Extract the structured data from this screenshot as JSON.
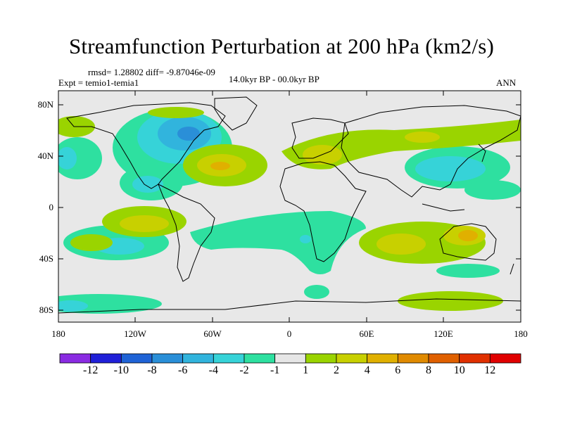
{
  "title": "Streamfunction Perturbation at 200 hPa (km2/s)",
  "stats": "rmsd= 1.28802 diff= -9.87046e-09",
  "experiment": "Expt = temio1-temia1",
  "period": "14.0kyr BP - 00.0kyr BP",
  "season": "ANN",
  "colors": {
    "land_outline": "#000000",
    "background": "#e8e8e8"
  },
  "map_data": {
    "projection": "cylindrical-equidistant",
    "lon_range": [
      -180,
      180
    ],
    "lat_range": [
      -90,
      90
    ],
    "y_ticks": [
      "80N",
      "40N",
      "0",
      "40S",
      "80S"
    ],
    "x_ticks": [
      "180",
      "120W",
      "60W",
      "0",
      "60E",
      "120E",
      "180"
    ]
  },
  "colorbar": {
    "labels": [
      "-12",
      "-10",
      "-8",
      "-6",
      "-4",
      "-2",
      "-1",
      "1",
      "2",
      "4",
      "6",
      "8",
      "10",
      "12"
    ],
    "colors": [
      "#8a2be2",
      "#2020d8",
      "#1f63d6",
      "#2a8fd8",
      "#31b4dd",
      "#36d3d8",
      "#2ee0a0",
      "#e6e6e6",
      "#9ad400",
      "#c8d000",
      "#e0b000",
      "#e08a00",
      "#e06000",
      "#e03000",
      "#e00000"
    ]
  }
}
